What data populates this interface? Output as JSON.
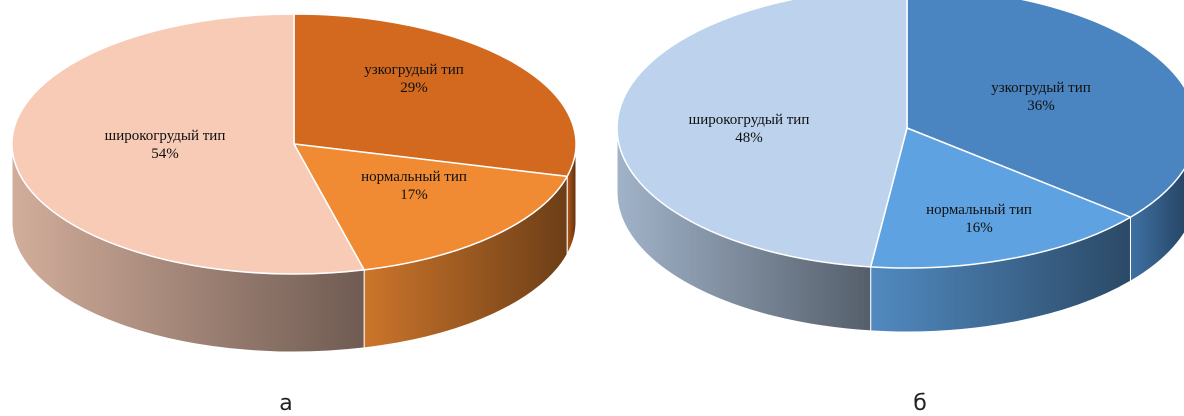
{
  "chart_data": [
    {
      "type": "pie",
      "panel_label": "а",
      "slices": [
        {
          "label": "узкогрудый тип",
          "value": 29,
          "value_label": "29%",
          "color": "#D2691E"
        },
        {
          "label": "нормальный тип",
          "value": 17,
          "value_label": "17%",
          "color": "#F08A33"
        },
        {
          "label": "широкогрудый тип",
          "value": 54,
          "value_label": "54%",
          "color": "#F7CBB6"
        }
      ]
    },
    {
      "type": "pie",
      "panel_label": "б",
      "slices": [
        {
          "label": "узкогрудый тип",
          "value": 36,
          "value_label": "36%",
          "color": "#4A85C1"
        },
        {
          "label": "нормальный тип",
          "value": 16,
          "value_label": "16%",
          "color": "#5FA2E2"
        },
        {
          "label": "широкогрудый тип",
          "value": 48,
          "value_label": "48%",
          "color": "#BDD3ED"
        }
      ]
    }
  ]
}
